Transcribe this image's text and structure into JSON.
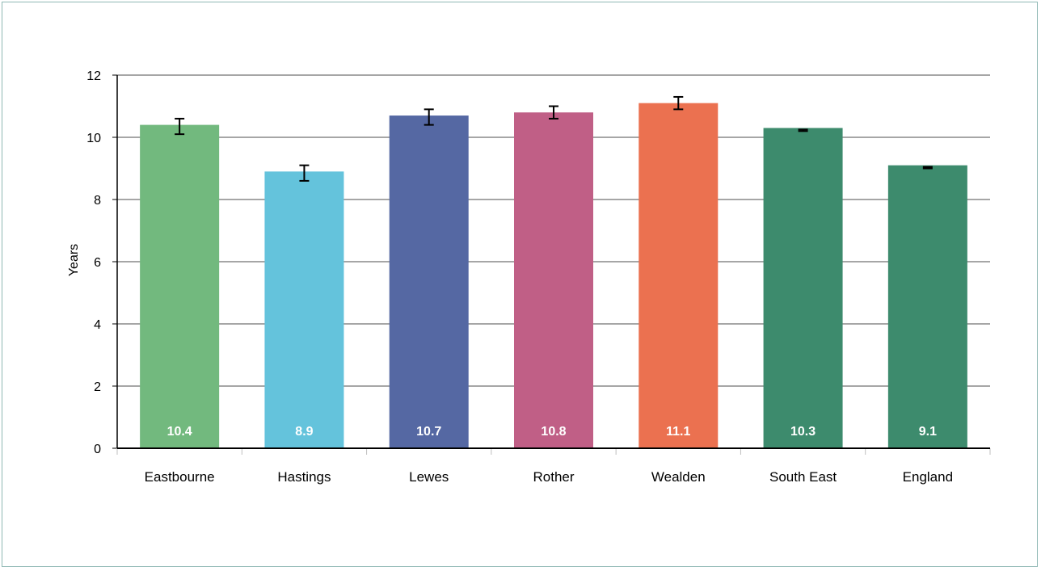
{
  "chart_data": {
    "type": "bar",
    "title": "",
    "xlabel": "",
    "ylabel": "Years",
    "ylim": [
      0,
      12
    ],
    "yticks": [
      0,
      2,
      4,
      6,
      8,
      10,
      12
    ],
    "grid": true,
    "legend": "none",
    "categories": [
      "Eastbourne",
      "Hastings",
      "Lewes",
      "Rother",
      "Wealden",
      "South East",
      "England"
    ],
    "values": [
      10.4,
      8.9,
      10.7,
      10.8,
      11.1,
      10.3,
      9.1
    ],
    "value_labels": [
      "10.4",
      "8.9",
      "10.7",
      "10.8",
      "11.1",
      "10.3",
      "9.1"
    ],
    "error_bars": [
      {
        "low": 10.1,
        "high": 10.6
      },
      {
        "low": 8.6,
        "high": 9.1
      },
      {
        "low": 10.4,
        "high": 10.9
      },
      {
        "low": 10.6,
        "high": 11.0
      },
      {
        "low": 10.9,
        "high": 11.3
      },
      {
        "low": 10.2,
        "high": 10.25
      },
      {
        "low": 9.0,
        "high": 9.05
      }
    ],
    "colors": [
      "#72b97e",
      "#64c3dc",
      "#5568a3",
      "#c05f86",
      "#eb7150",
      "#3d8b6d",
      "#3d8b6d"
    ]
  }
}
